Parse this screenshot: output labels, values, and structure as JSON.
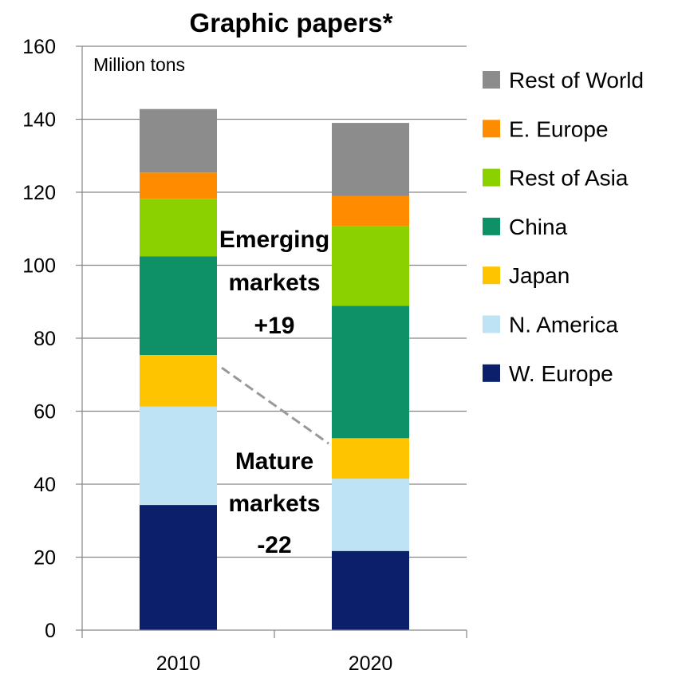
{
  "chart_data": {
    "type": "bar",
    "stacked": true,
    "title": "Graphic papers*",
    "unit_label": "Million tons",
    "xlabel": "",
    "ylabel": "",
    "ylim": [
      0,
      160
    ],
    "yticks": [
      0,
      20,
      40,
      60,
      80,
      100,
      120,
      140,
      160
    ],
    "categories": [
      "2010",
      "2020"
    ],
    "grid": "horizontal",
    "legend_position": "right",
    "series": [
      {
        "name": "W. Europe",
        "color": "#0b1f6b",
        "values": [
          34.3,
          21.7
        ]
      },
      {
        "name": "N. America",
        "color": "#bde3f5",
        "values": [
          27.0,
          19.8
        ]
      },
      {
        "name": "Japan",
        "color": "#ffc400",
        "values": [
          14.1,
          11.1
        ]
      },
      {
        "name": "China",
        "color": "#0e9167",
        "values": [
          27.0,
          36.3
        ]
      },
      {
        "name": "Rest of Asia",
        "color": "#8bd100",
        "values": [
          15.8,
          21.9
        ]
      },
      {
        "name": "E. Europe",
        "color": "#ff8c00",
        "values": [
          7.2,
          8.2
        ]
      },
      {
        "name": "Rest of World",
        "color": "#8c8c8c",
        "values": [
          17.4,
          20.0
        ]
      }
    ],
    "annotations": {
      "emerging": [
        "Emerging",
        "markets",
        "+19"
      ],
      "mature": [
        "Mature",
        "markets",
        "-22"
      ]
    }
  }
}
